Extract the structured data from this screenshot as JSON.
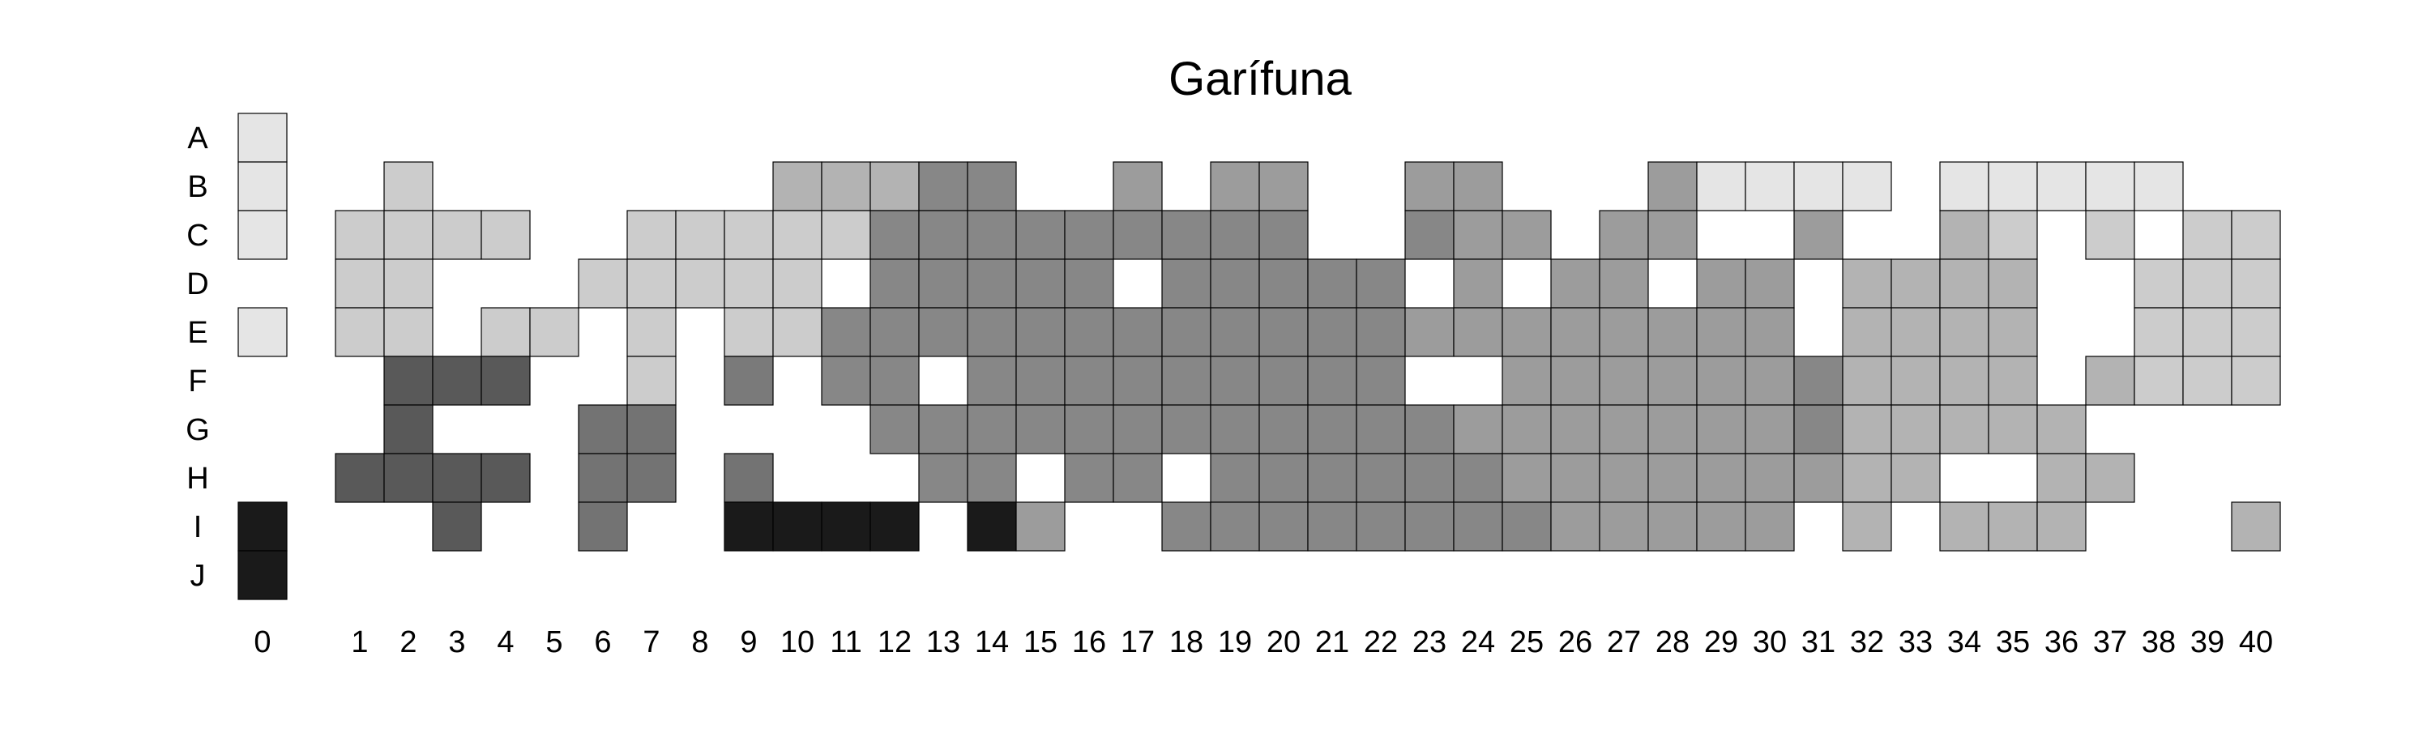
{
  "chart_data": {
    "type": "heatmap",
    "title": "Garífuna",
    "xlabel": "",
    "ylabel": "",
    "x_categories": [
      "0",
      "1",
      "2",
      "3",
      "4",
      "5",
      "6",
      "7",
      "8",
      "9",
      "10",
      "11",
      "12",
      "13",
      "14",
      "15",
      "16",
      "17",
      "18",
      "19",
      "20",
      "21",
      "22",
      "23",
      "24",
      "25",
      "26",
      "27",
      "28",
      "29",
      "30",
      "31",
      "32",
      "33",
      "34",
      "35",
      "36",
      "37",
      "38",
      "39",
      "40"
    ],
    "y_categories": [
      "A",
      "B",
      "C",
      "D",
      "E",
      "F",
      "G",
      "H",
      "I",
      "J"
    ],
    "colorscale": "grayscale, white = lowest, black = highest",
    "grid": false,
    "legend": "none",
    "cell_values": {
      "A": {
        "0": 1
      },
      "B": {
        "0": 1,
        "2": 2,
        "10": 3,
        "11": 3,
        "12": 3,
        "13": 5,
        "14": 5,
        "17": 4,
        "19": 4,
        "20": 4,
        "23": 4,
        "24": 4,
        "28": 4,
        "29": 1,
        "30": 1,
        "31": 1,
        "32": 1,
        "34": 1,
        "35": 1,
        "36": 1,
        "37": 1,
        "38": 1
      },
      "C": {
        "0": 1,
        "1": 2,
        "2": 2,
        "3": 2,
        "4": 2,
        "7": 2,
        "8": 2,
        "9": 2,
        "10": 2,
        "11": 2,
        "12": 5,
        "13": 5,
        "14": 5,
        "15": 5,
        "16": 5,
        "17": 5,
        "18": 5,
        "19": 5,
        "20": 5,
        "23": 5,
        "24": 4,
        "25": 4,
        "27": 4,
        "28": 4,
        "31": 4,
        "34": 3,
        "35": 2,
        "37": 2,
        "39": 2,
        "40": 2
      },
      "D": {
        "1": 2,
        "2": 2,
        "6": 2,
        "7": 2,
        "8": 2,
        "9": 2,
        "10": 2,
        "12": 5,
        "13": 5,
        "14": 5,
        "15": 5,
        "16": 5,
        "18": 5,
        "19": 5,
        "20": 5,
        "21": 5,
        "22": 5,
        "24": 4,
        "26": 4,
        "27": 4,
        "29": 4,
        "30": 4,
        "32": 3,
        "33": 3,
        "34": 3,
        "35": 3,
        "38": 2,
        "39": 2,
        "40": 2
      },
      "E": {
        "0": 1,
        "1": 2,
        "2": 2,
        "4": 2,
        "5": 2,
        "7": 2,
        "9": 2,
        "10": 2,
        "11": 5,
        "12": 5,
        "13": 5,
        "14": 5,
        "15": 5,
        "16": 5,
        "17": 5,
        "18": 5,
        "19": 5,
        "20": 5,
        "21": 5,
        "22": 5,
        "23": 4,
        "24": 4,
        "25": 4,
        "26": 4,
        "27": 4,
        "28": 4,
        "29": 4,
        "30": 4,
        "32": 3,
        "33": 3,
        "34": 3,
        "35": 3,
        "38": 2,
        "39": 2,
        "40": 2
      },
      "F": {
        "2": 8,
        "3": 8,
        "4": 8,
        "7": 2,
        "9": 6,
        "11": 5,
        "12": 5,
        "14": 5,
        "15": 5,
        "16": 5,
        "17": 5,
        "18": 5,
        "19": 5,
        "20": 5,
        "21": 5,
        "22": 5,
        "25": 4,
        "26": 4,
        "27": 4,
        "28": 4,
        "29": 4,
        "30": 4,
        "31": 5,
        "32": 3,
        "33": 3,
        "34": 3,
        "35": 3,
        "37": 3,
        "38": 2,
        "39": 2,
        "40": 2
      },
      "G": {
        "2": 8,
        "6": 7,
        "7": 7,
        "12": 5,
        "13": 5,
        "14": 5,
        "15": 5,
        "16": 5,
        "17": 5,
        "18": 5,
        "19": 5,
        "20": 5,
        "21": 5,
        "22": 5,
        "23": 5,
        "24": 4,
        "25": 4,
        "26": 4,
        "27": 4,
        "28": 4,
        "29": 4,
        "30": 4,
        "31": 5,
        "32": 3,
        "33": 3,
        "34": 3,
        "35": 3,
        "36": 3
      },
      "H": {
        "1": 8,
        "2": 8,
        "3": 8,
        "4": 8,
        "6": 7,
        "7": 7,
        "9": 7,
        "13": 5,
        "14": 5,
        "16": 5,
        "17": 5,
        "19": 5,
        "20": 5,
        "21": 5,
        "22": 5,
        "23": 5,
        "24": 5,
        "25": 4,
        "26": 4,
        "27": 4,
        "28": 4,
        "29": 4,
        "30": 4,
        "31": 4,
        "32": 3,
        "33": 3,
        "36": 3,
        "37": 3
      },
      "I": {
        "0": 10,
        "3": 8,
        "6": 7,
        "9": 10,
        "10": 10,
        "11": 10,
        "12": 10,
        "14": 10,
        "15": 4,
        "18": 5,
        "19": 5,
        "20": 5,
        "21": 5,
        "22": 5,
        "23": 5,
        "24": 5,
        "25": 5,
        "26": 4,
        "27": 4,
        "28": 4,
        "29": 4,
        "30": 4,
        "32": 3,
        "34": 3,
        "35": 3,
        "36": 3,
        "40": 3
      },
      "J": {
        "0": 10
      }
    },
    "palette": {
      "1": "#e5e5e5",
      "2": "#cccccc",
      "3": "#b3b3b3",
      "4": "#9c9c9c",
      "5": "#878787",
      "6": "#7a7a7a",
      "7": "#737373",
      "8": "#595959",
      "10": "#1a1a1a"
    }
  }
}
